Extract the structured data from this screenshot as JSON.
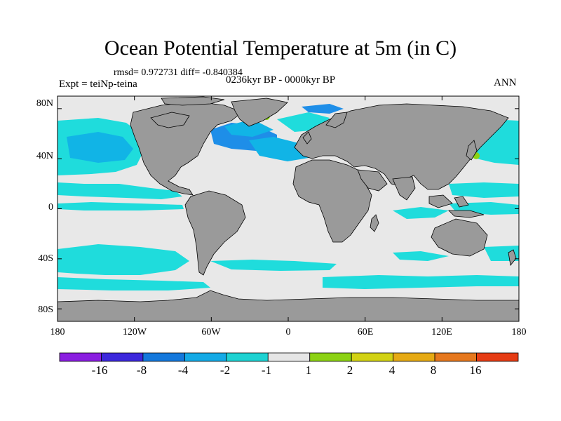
{
  "title": "Ocean Potential Temperature at 5m (in C)",
  "stats_line": "rmsd= 0.972731 diff= -0.840384",
  "period": "0236kyr BP - 0000kyr BP",
  "experiment": "Expt = teiNp-teina",
  "season": "ANN",
  "colors": {
    "land": "#9a9a9a",
    "near_zero": "#e8e8e8",
    "cyan": "#1fdcdc",
    "light_blue": "#11b4e6",
    "mid_blue": "#1e8ee8"
  },
  "lat_axis": {
    "ticks": [
      80,
      40,
      0,
      -40,
      -80
    ],
    "labels": [
      "80N",
      "40N",
      "0",
      "40S",
      "80S"
    ]
  },
  "lon_axis": {
    "ticks": [
      -180,
      -120,
      -60,
      0,
      60,
      120,
      180
    ],
    "labels": [
      "180",
      "120W",
      "60W",
      "0",
      "60E",
      "120E",
      "180"
    ]
  },
  "colorbar": {
    "colors": [
      "#8a1ee0",
      "#3c28dc",
      "#1478dc",
      "#14aae6",
      "#1ed2d2",
      "#e6e6e6",
      "#8cd214",
      "#d2d214",
      "#e6aa14",
      "#e6781e",
      "#e63c14"
    ],
    "labels": [
      "-16",
      "-8",
      "-4",
      "-2",
      "-1",
      "1",
      "2",
      "4",
      "8",
      "16"
    ]
  }
}
